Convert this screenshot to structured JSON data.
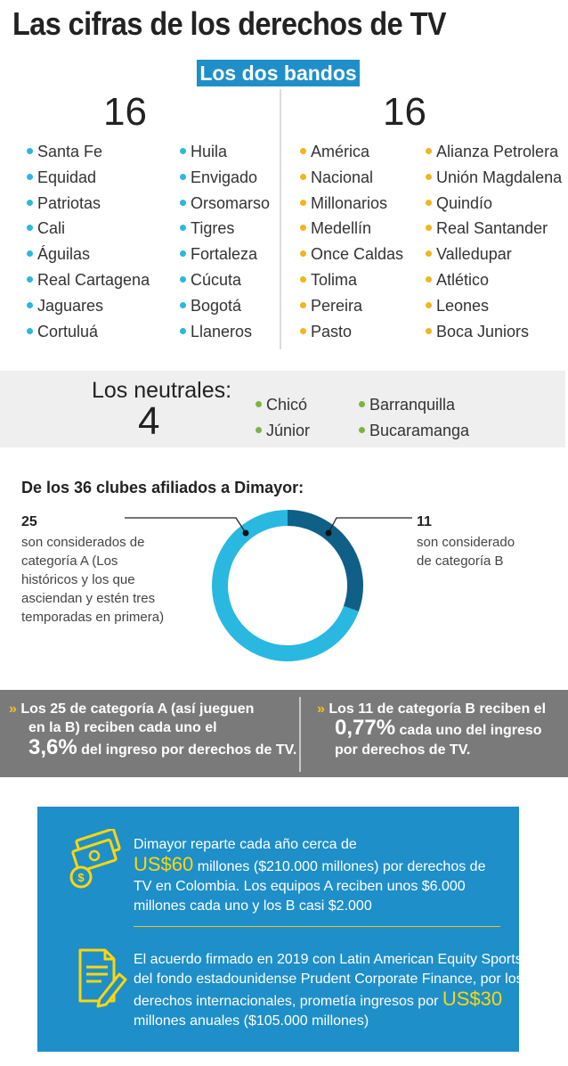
{
  "title": "Las cifras de los derechos de TV",
  "bandos": {
    "label": "Los dos bandos",
    "left": {
      "count": "16",
      "col1": [
        "Santa Fe",
        "Equidad",
        "Patriotas",
        "Cali",
        "Águilas",
        "Real Cartagena",
        "Jaguares",
        "Cortuluá"
      ],
      "col2": [
        "Huila",
        "Envigado",
        "Orsomarso",
        "Tigres",
        "Fortaleza",
        "Cúcuta",
        "Bogotá",
        "Llaneros"
      ]
    },
    "right": {
      "count": "16",
      "col1": [
        "América",
        "Nacional",
        "Millonarios",
        "Medellín",
        "Once Caldas",
        "Tolima",
        "Pereira",
        "Pasto"
      ],
      "col2": [
        "Alianza Petrolera",
        "Unión Magdalena",
        "Quindío",
        "Real Santander",
        "Valledupar",
        "Atlético",
        "Leones",
        "Boca Juniors"
      ]
    }
  },
  "neutrales": {
    "label": "Los neutrales:",
    "count": "4",
    "teams": [
      "Chicó",
      "Júnior",
      "Barranquilla",
      "Bucaramanga"
    ]
  },
  "clubes": {
    "title": "De los 36 clubes afiliados a Dimayor:",
    "a_count": "25",
    "a_text": [
      "son considerados de",
      "categoría A (Los",
      "históricos y los que",
      "asciendan y estén tres",
      "temporadas en primera)"
    ],
    "b_count": "11",
    "b_text": [
      "son considerado",
      "de categoría B"
    ]
  },
  "chart_data": {
    "type": "pie",
    "categories": [
      "categoría A",
      "categoría B"
    ],
    "values": [
      25,
      11
    ],
    "colors": [
      "#29b8e0",
      "#0f5f87"
    ]
  },
  "reparto": {
    "a_line1": "Los 25 de categoría A (así jueguen",
    "a_line2": "en la B) reciben cada uno el",
    "a_pct": "3,6%",
    "a_line3": "del ingreso por derechos de TV.",
    "b_line1": "Los 11 de categoría B reciben el",
    "b_pct": "0,77%",
    "b_line2": "cada uno del ingreso",
    "b_line3": "por derechos de TV."
  },
  "info": {
    "p1_line1": "Dimayor reparte cada año cerca de",
    "p1_amount": "US$60",
    "p1_line2": "millones ($210.000 millones) por derechos de",
    "p1_line3": "TV en Colombia. Los equipos A reciben unos $6.000",
    "p1_line4": "millones cada uno y los B casi $2.000",
    "p2_line1": "El acuerdo firmado en 2019 con Latin American Equity Sports,",
    "p2_line2": "del fondo estadounidense Prudent Corporate Finance, por los",
    "p2_line3": "derechos internacionales, prometía ingresos por",
    "p2_amount": "US$30",
    "p2_line4": "millones anuales ($105.000 millones)"
  },
  "colors": {
    "accent_blue": "#1e8fc9",
    "dot_blue": "#29b8e0",
    "dot_yellow": "#f2b51c",
    "dot_green": "#7cb342",
    "grey_band": "#7a7a7a",
    "highlight_yellow": "#ffd60a"
  },
  "icons": [
    "money-icon",
    "document-pen-icon",
    "chevron-right-icon"
  ]
}
